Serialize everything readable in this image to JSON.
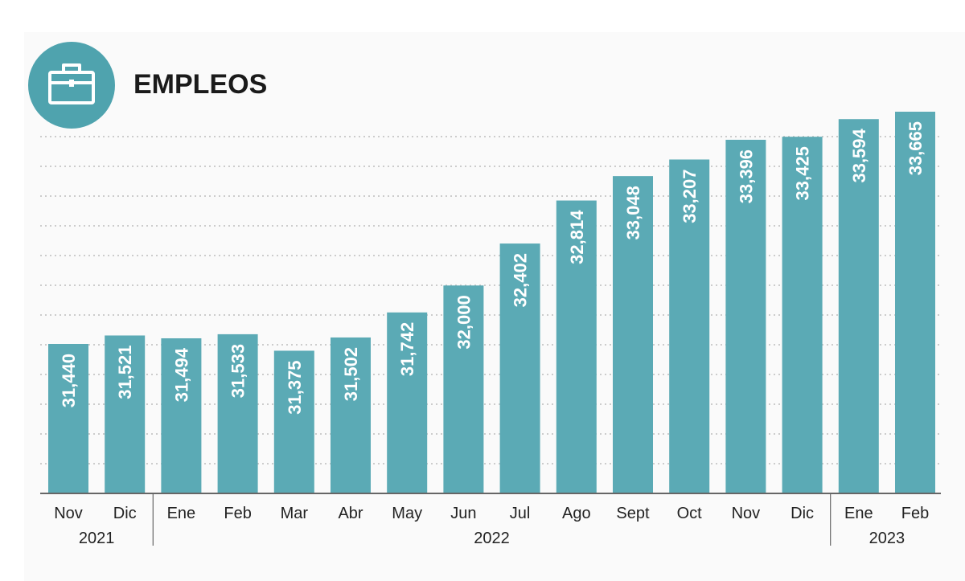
{
  "title": "EMPLEOS",
  "icon": "briefcase-icon",
  "colors": {
    "bar": "#5baab5",
    "icon_circle": "#4fa3ae",
    "grid": "#bcbcbc",
    "axis": "#666666"
  },
  "chart_data": {
    "type": "bar",
    "categories": [
      "Nov",
      "Dic",
      "Ene",
      "Feb",
      "Mar",
      "Abr",
      "May",
      "Jun",
      "Jul",
      "Ago",
      "Sept",
      "Oct",
      "Nov",
      "Dic",
      "Ene",
      "Feb"
    ],
    "values": [
      31440,
      31521,
      31494,
      31533,
      31375,
      31502,
      31742,
      32000,
      32402,
      32814,
      33048,
      33207,
      33396,
      33425,
      33594,
      33665
    ],
    "value_labels": [
      "31,440",
      "31,521",
      "31,494",
      "31,533",
      "31,375",
      "31,502",
      "31,742",
      "32,000",
      "32,402",
      "32,814",
      "33,048",
      "33,207",
      "33,396",
      "33,425",
      "33,594",
      "33,665"
    ],
    "year_groups": [
      {
        "label": "2021",
        "start": 0,
        "end": 1
      },
      {
        "label": "2022",
        "start": 2,
        "end": 13
      },
      {
        "label": "2023",
        "start": 14,
        "end": 15
      }
    ],
    "title": "EMPLEOS",
    "xlabel": "",
    "ylabel": "",
    "grid": true
  }
}
